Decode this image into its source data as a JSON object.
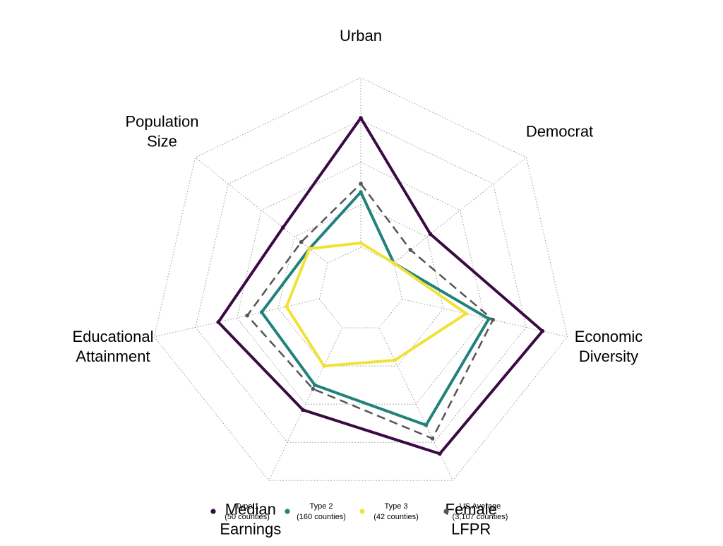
{
  "chart_data": {
    "type": "radar",
    "title": "",
    "axes": [
      [
        "Urban"
      ],
      [
        "Democrat"
      ],
      [
        "Economic",
        "Diversity"
      ],
      [
        "Female",
        "LFPR"
      ],
      [
        "Median",
        "Earnings"
      ],
      [
        "Educational",
        "Attainment"
      ],
      [
        "Population",
        "Size"
      ]
    ],
    "rlim": [
      0,
      1
    ],
    "ring_levels": [
      0.2,
      0.4,
      0.6,
      0.8,
      1.0
    ],
    "grid": true,
    "legend_position": "bottom",
    "series": [
      {
        "name": "Type 1",
        "name_note": "(50 counties)",
        "color": "#3b0a45",
        "dash": "solid",
        "values": [
          0.81,
          0.42,
          0.88,
          0.86,
          0.63,
          0.69,
          0.47
        ]
      },
      {
        "name": "Type 2",
        "name_note": "(160 counties)",
        "color": "#21827b",
        "dash": "solid",
        "values": [
          0.46,
          0.2,
          0.62,
          0.71,
          0.5,
          0.48,
          0.31
        ]
      },
      {
        "name": "Type 3",
        "name_note": "(42 counties)",
        "color": "#f2e237",
        "dash": "solid",
        "values": [
          0.22,
          0.2,
          0.51,
          0.37,
          0.4,
          0.36,
          0.31
        ]
      },
      {
        "name": "US Average",
        "name_note": "(3,107 counties)",
        "color": "#555555",
        "dash": "dashed",
        "values": [
          0.5,
          0.3,
          0.64,
          0.78,
          0.52,
          0.55,
          0.36
        ]
      }
    ]
  }
}
